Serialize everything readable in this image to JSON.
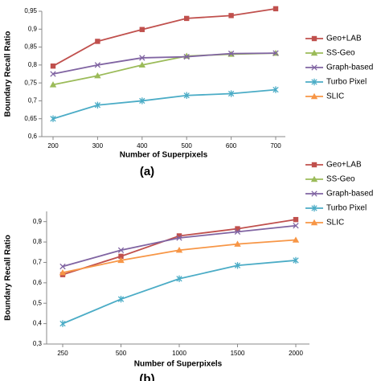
{
  "chart_data": [
    {
      "type": "line",
      "caption": "(a)",
      "x_label": "Number of Superpixels",
      "y_label": "Boundary Recall Ratio",
      "categories": [
        "200",
        "300",
        "400",
        "500",
        "600",
        "700"
      ],
      "ylim": [
        0.6,
        0.95
      ],
      "yticks": [
        {
          "value": 0.6,
          "label": "0,6"
        },
        {
          "value": 0.65,
          "label": "0,65"
        },
        {
          "value": 0.7,
          "label": "0,7"
        },
        {
          "value": 0.75,
          "label": "0,75"
        },
        {
          "value": 0.8,
          "label": "0,8"
        },
        {
          "value": 0.85,
          "label": "0,85"
        },
        {
          "value": 0.9,
          "label": "0,9"
        },
        {
          "value": 0.95,
          "label": "0,95"
        }
      ],
      "grid": false,
      "series": [
        {
          "name": "Geo+LAB",
          "color": "#c0504d",
          "marker": "square",
          "values": [
            0.797,
            0.866,
            0.899,
            0.93,
            0.938,
            0.957
          ]
        },
        {
          "name": "SS-Geo",
          "color": "#9bbb59",
          "marker": "triangle",
          "values": [
            0.745,
            0.77,
            0.8,
            0.825,
            0.83,
            0.833
          ]
        },
        {
          "name": "Graph-based",
          "color": "#8064a2",
          "marker": "x",
          "values": [
            0.775,
            0.8,
            0.82,
            0.823,
            0.832,
            0.833
          ]
        },
        {
          "name": "Turbo Pixel",
          "color": "#4bacc6",
          "marker": "star",
          "values": [
            0.65,
            0.688,
            0.7,
            0.715,
            0.72,
            0.731
          ]
        },
        {
          "name": "SLIC",
          "color": "#f79646",
          "marker": "triangle",
          "values": [
            null,
            null,
            null,
            null,
            null,
            null
          ]
        }
      ]
    },
    {
      "type": "line",
      "caption": "(b)",
      "x_label": "Number of Superpixels",
      "y_label": "Boundary Recall Ratio",
      "categories": [
        "250",
        "500",
        "1000",
        "1500",
        "2000"
      ],
      "ylim": [
        0.3,
        0.95
      ],
      "yticks": [
        {
          "value": 0.3,
          "label": "0,3"
        },
        {
          "value": 0.4,
          "label": "0,4"
        },
        {
          "value": 0.5,
          "label": "0,5"
        },
        {
          "value": 0.6,
          "label": "0,6"
        },
        {
          "value": 0.7,
          "label": "0,7"
        },
        {
          "value": 0.8,
          "label": "0,8"
        },
        {
          "value": 0.9,
          "label": "0,9"
        }
      ],
      "grid": false,
      "series": [
        {
          "name": "Geo+LAB",
          "color": "#c0504d",
          "marker": "square",
          "values": [
            0.64,
            0.73,
            0.83,
            0.865,
            0.91
          ]
        },
        {
          "name": "SS-Geo",
          "color": "#9bbb59",
          "marker": "triangle",
          "values": [
            null,
            null,
            null,
            null,
            null
          ]
        },
        {
          "name": "Graph-based",
          "color": "#8064a2",
          "marker": "x",
          "values": [
            0.68,
            0.76,
            0.82,
            0.85,
            0.88
          ]
        },
        {
          "name": "Turbo Pixel",
          "color": "#4bacc6",
          "marker": "star",
          "values": [
            0.4,
            0.52,
            0.62,
            0.685,
            0.71
          ]
        },
        {
          "name": "SLIC",
          "color": "#f79646",
          "marker": "triangle",
          "values": [
            0.65,
            0.71,
            0.76,
            0.79,
            0.81
          ]
        }
      ]
    }
  ]
}
